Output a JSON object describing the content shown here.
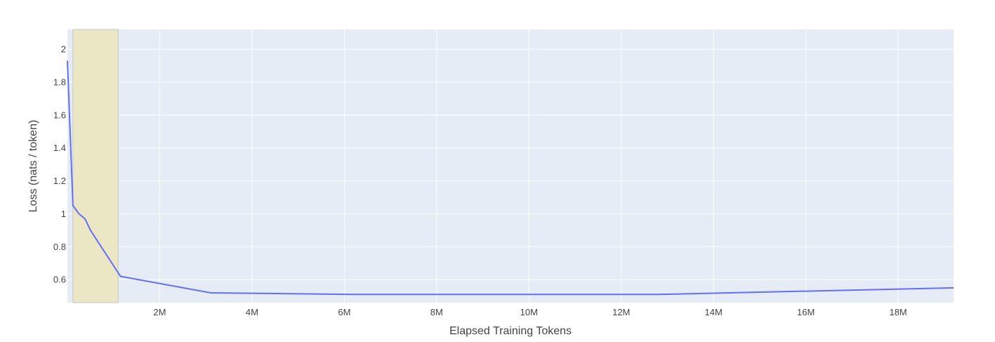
{
  "chart_data": {
    "type": "line",
    "title": "",
    "xlabel": "Elapsed Training Tokens",
    "ylabel": "Loss (nats / token)",
    "xlim": [
      0,
      19200000
    ],
    "ylim": [
      0.46,
      2.12
    ],
    "grid": true,
    "legend": "none",
    "x_ticks": [
      {
        "value": 2000000,
        "label": "2M"
      },
      {
        "value": 4000000,
        "label": "4M"
      },
      {
        "value": 6000000,
        "label": "6M"
      },
      {
        "value": 8000000,
        "label": "8M"
      },
      {
        "value": 10000000,
        "label": "10M"
      },
      {
        "value": 12000000,
        "label": "12M"
      },
      {
        "value": 14000000,
        "label": "14M"
      },
      {
        "value": 16000000,
        "label": "16M"
      },
      {
        "value": 18000000,
        "label": "18M"
      }
    ],
    "y_ticks": [
      {
        "value": 0.6,
        "label": "0.6"
      },
      {
        "value": 0.8,
        "label": "0.8"
      },
      {
        "value": 1.0,
        "label": "1"
      },
      {
        "value": 1.2,
        "label": "1.2"
      },
      {
        "value": 1.4,
        "label": "1.4"
      },
      {
        "value": 1.6,
        "label": "1.6"
      },
      {
        "value": 1.8,
        "label": "1.8"
      },
      {
        "value": 2.0,
        "label": "2"
      }
    ],
    "highlight_region": {
      "x_start": 120000,
      "x_end": 1100000
    },
    "series": [
      {
        "x": [
          0,
          120000,
          250000,
          380000,
          500000,
          1150000,
          3100000,
          6200000,
          9500000,
          12800000,
          16000000,
          19200000
        ],
        "y": [
          1.93,
          1.05,
          1.0,
          0.97,
          0.9,
          0.62,
          0.52,
          0.51,
          0.51,
          0.51,
          0.53,
          0.55
        ]
      }
    ],
    "colors": {
      "plot_background": "#e5ecf6",
      "grid": "#ffffff",
      "line": "#636efa",
      "highlight_fill": "#ebe6c3",
      "highlight_stroke": "#c5c7c9"
    }
  }
}
